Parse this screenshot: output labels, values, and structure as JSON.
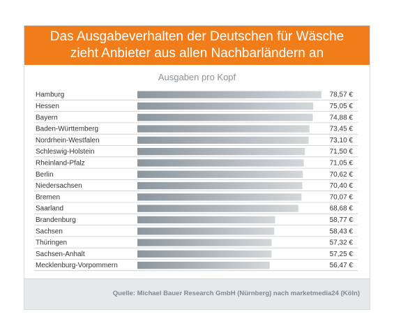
{
  "title_line1": "Das Ausgabeverhalten der Deutschen für Wäsche",
  "title_line2": "zieht Anbieter aus allen Nachbarländern an",
  "source": "Quelle: Michael Bauer Research GmbH (Nürnberg) nach marketmedia24 (Köln)",
  "colors": {
    "header": "#f07d1a",
    "subtitle": "#8a9299",
    "bar": "#8c969d",
    "bar_light": "#d3d7da",
    "text": "#333333"
  },
  "chart_data": {
    "type": "bar",
    "orientation": "horizontal",
    "title": "Ausgaben pro Kopf",
    "categories": [
      "Hamburg",
      "Hessen",
      "Bayern",
      "Baden-Württemberg",
      "Nordrhein-Westfalen",
      "Schleswig-Holstein",
      "Rheinland-Pfalz",
      "Berlin",
      "Niedersachsen",
      "Bremen",
      "Saarland",
      "Brandenburg",
      "Sachsen",
      "Thüringen",
      "Sachsen-Anhalt",
      "Mecklenburg-Vorpommern"
    ],
    "values": [
      78.57,
      75.05,
      74.88,
      73.45,
      73.1,
      71.5,
      71.05,
      70.62,
      70.4,
      70.07,
      68.68,
      58.77,
      58.43,
      57.32,
      57.25,
      56.47
    ],
    "value_labels": [
      "78,57 €",
      "75,05 €",
      "74,88 €",
      "73,45 €",
      "73,10 €",
      "71,50 €",
      "71,05 €",
      "70,62 €",
      "70,40 €",
      "70,07 €",
      "68,68 €",
      "58,77 €",
      "58,43 €",
      "57,32 €",
      "57,25 €",
      "56,47 €"
    ],
    "xlim": [
      0,
      80
    ],
    "grid": false
  }
}
